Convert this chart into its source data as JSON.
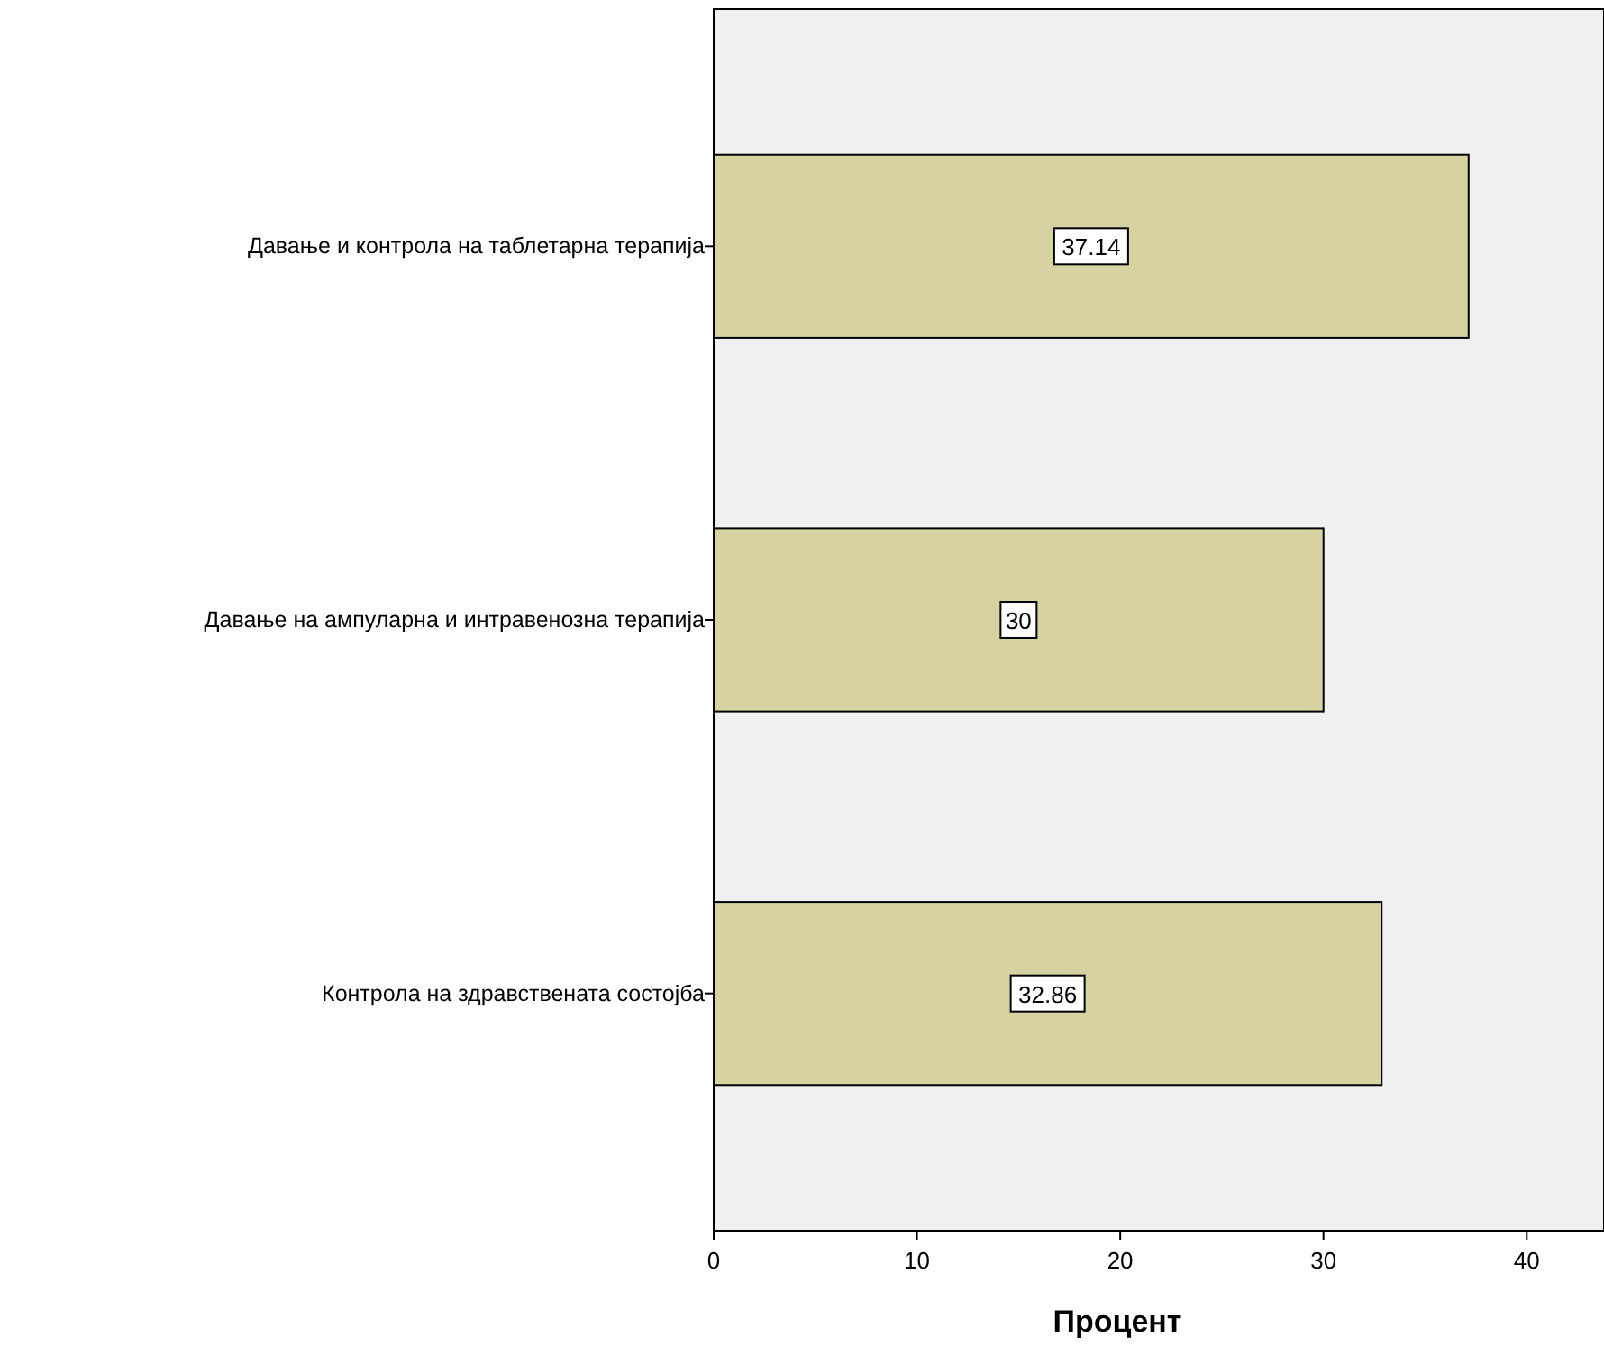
{
  "chart_data": {
    "type": "bar",
    "orientation": "horizontal",
    "xlabel": "Процент",
    "categories": [
      "Давање и контрола на таблетарна терапија",
      "Давање на ампуларна и интравенозна терапија",
      "Контрола на здравствената состојба"
    ],
    "values": [
      37.14,
      30,
      32.86
    ],
    "color": "#d6d2a2",
    "xlim": [
      0,
      43.8
    ],
    "xticks": [
      0,
      10,
      20,
      30,
      40
    ],
    "data_labels": true,
    "grid": false
  }
}
